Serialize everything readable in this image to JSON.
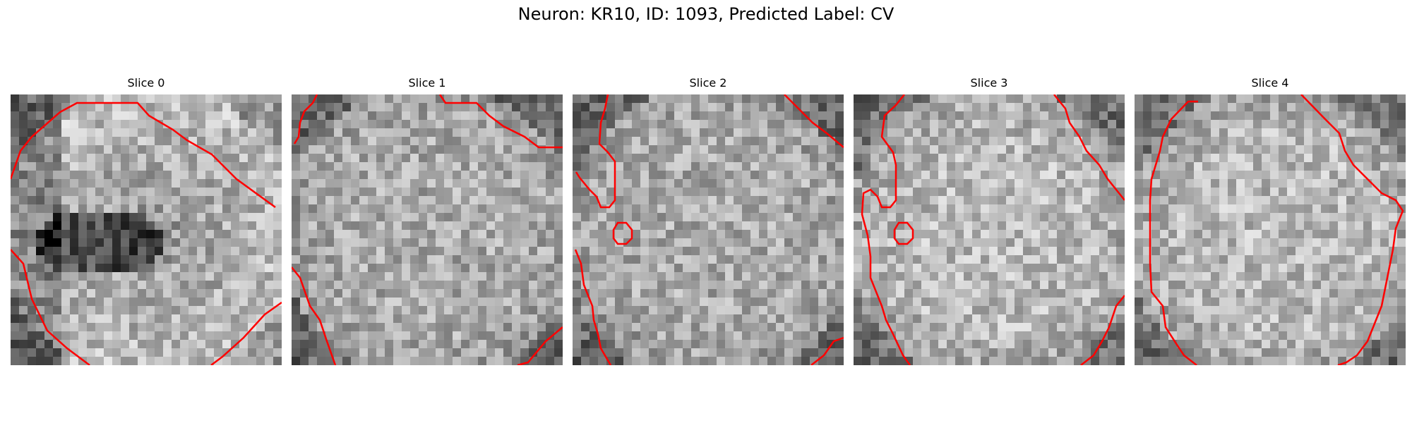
{
  "figure": {
    "title": "Neuron: KR10, ID: 1093, Predicted Label: CV"
  },
  "panels": [
    {
      "title": "Slice 0",
      "seed": 11,
      "center_brightness": "dark-blob",
      "contour_color": "#ff0000"
    },
    {
      "title": "Slice 1",
      "seed": 23,
      "center_brightness": "mid",
      "contour_color": "#ff0000"
    },
    {
      "title": "Slice 2",
      "seed": 37,
      "center_brightness": "mid",
      "contour_color": "#ff0000"
    },
    {
      "title": "Slice 3",
      "seed": 41,
      "center_brightness": "light",
      "contour_color": "#ff0000"
    },
    {
      "title": "Slice 4",
      "seed": 53,
      "center_brightness": "light",
      "contour_color": "#ff0000"
    }
  ],
  "image_grid": {
    "cells_per_side": 32,
    "colormap": "gray"
  }
}
